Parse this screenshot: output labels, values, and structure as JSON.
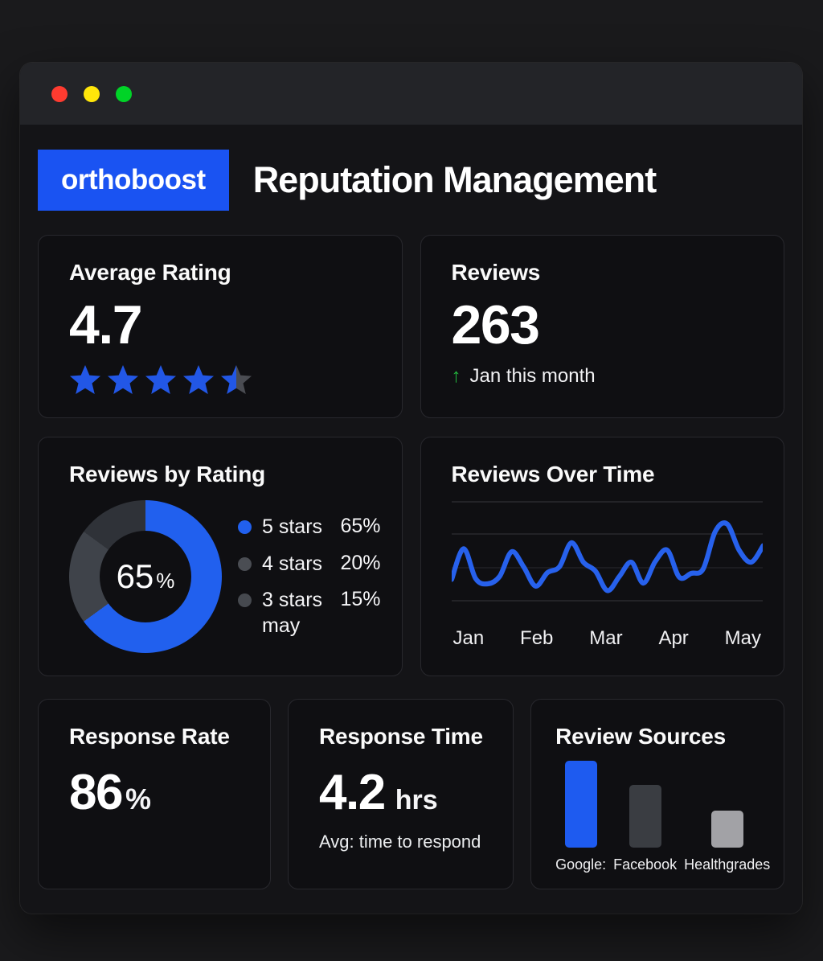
{
  "window": {
    "controls": [
      {
        "name": "close",
        "color": "#fe3b30"
      },
      {
        "name": "minimize",
        "color": "#ffe60a"
      },
      {
        "name": "zoom",
        "color": "#00d327"
      }
    ]
  },
  "header": {
    "logo_text": "orthoboost",
    "logo_bg": "#1a53f2",
    "title": "Reputation Management"
  },
  "cards": {
    "average_rating": {
      "title": "Average Rating",
      "value": "4.7",
      "stars_total": 5,
      "stars_value": 4.5,
      "star_filled_color": "#2257e6",
      "star_empty_color": "#4a4c52"
    },
    "reviews": {
      "title": "Reviews",
      "value": "263",
      "trend_arrow": "↑",
      "trend_arrow_color": "#22b83e",
      "trend_text": "Jan this month"
    },
    "reviews_by_rating": {
      "title": "Reviews by Rating",
      "center_value": "65",
      "center_unit": "%"
    },
    "reviews_over_time": {
      "title": "Reviews Over Time"
    },
    "response_rate": {
      "title": "Response Rate",
      "value": "86",
      "unit": "%"
    },
    "response_time": {
      "title": "Response Time",
      "value": "4.2",
      "unit": "hrs",
      "subtitle": "Avg: time to respond"
    },
    "review_sources": {
      "title": "Review Sources"
    }
  },
  "chart_data": [
    {
      "type": "pie",
      "subtype": "donut",
      "title": "Reviews by Rating",
      "labels": [
        "5 stars",
        "4 stars",
        "3 stars"
      ],
      "values": [
        65,
        20,
        15
      ],
      "value_labels": [
        "65%",
        "20%",
        "15%"
      ],
      "sublabels": [
        "",
        "",
        "may"
      ],
      "colors": [
        "#2160ee",
        "#3f434a",
        "#2f3238"
      ],
      "legend_dot_colors": [
        "#2160ee",
        "#4a4d53",
        "#46494f"
      ],
      "center_label": "65%",
      "legend_position": "right"
    },
    {
      "type": "line",
      "title": "Reviews Over Time",
      "x_labels": [
        "Jan",
        "Feb",
        "Mar",
        "Apr",
        "May"
      ],
      "values": [
        21,
        62,
        22,
        15,
        25,
        58,
        38,
        12,
        30,
        38,
        70,
        44,
        32,
        6,
        25,
        44,
        16,
        45,
        60,
        24,
        29,
        35,
        85,
        95,
        60,
        44,
        66
      ],
      "y_range": [
        0,
        100
      ],
      "y_axis_visible": false,
      "grid": true,
      "color": "#2761ec"
    },
    {
      "type": "bar",
      "title": "Review Sources",
      "categories": [
        "Google:",
        "Facebook",
        "Healthgrades"
      ],
      "values": [
        100,
        72,
        43
      ],
      "unit": "relative-height",
      "colors": [
        "#1e5bf0",
        "#3a3d42",
        "#a2a2a6"
      ],
      "y_axis_visible": false
    }
  ]
}
